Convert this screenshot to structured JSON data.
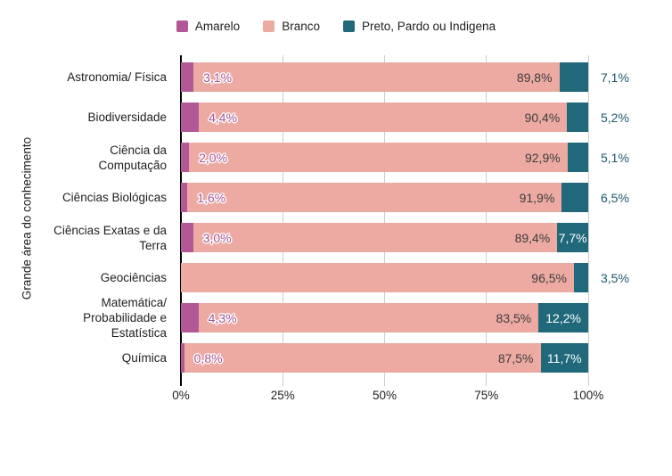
{
  "chart_data": {
    "type": "bar",
    "orientation": "horizontal",
    "stacked": true,
    "title": "",
    "xlabel": "",
    "ylabel": "Grande área do conhecimento",
    "xlim": [
      0,
      100
    ],
    "x_ticks": [
      "0%",
      "25%",
      "50%",
      "75%",
      "100%"
    ],
    "grid": true,
    "legend_position": "top",
    "legend": {
      "items": [
        {
          "label": "Amarelo",
          "color": "#b25896"
        },
        {
          "label": "Branco",
          "color": "#ecaaa2"
        },
        {
          "label": "Preto, Pardo ou Indigena",
          "color": "#20697b"
        }
      ]
    },
    "annotation_colors": {
      "amarelo_text": "#a6538f",
      "branco_text": "#3d3d3d",
      "ppi_inside_text": "#ffffff",
      "ppi_outside_text": "#1a5b6e"
    },
    "rows": [
      {
        "category": "Astronomia/ Física",
        "amarelo": 3.1,
        "branco": 89.8,
        "ppi": 7.1,
        "amarelo_label": "3,1%",
        "branco_label": "89,8%",
        "ppi_label": "7,1%",
        "ppi_label_position": "outside"
      },
      {
        "category": "Biodiversidade",
        "amarelo": 4.4,
        "branco": 90.4,
        "ppi": 5.2,
        "amarelo_label": "4,4%",
        "branco_label": "90,4%",
        "ppi_label": "5,2%",
        "ppi_label_position": "outside"
      },
      {
        "category": "Ciência da\nComputação",
        "amarelo": 2.0,
        "branco": 92.9,
        "ppi": 5.1,
        "amarelo_label": "2,0%",
        "branco_label": "92,9%",
        "ppi_label": "5,1%",
        "ppi_label_position": "outside"
      },
      {
        "category": "Ciências Biológicas",
        "amarelo": 1.6,
        "branco": 91.9,
        "ppi": 6.5,
        "amarelo_label": "1,6%",
        "branco_label": "91,9%",
        "ppi_label": "6,5%",
        "ppi_label_position": "outside"
      },
      {
        "category": "Ciências Exatas e da\nTerra",
        "amarelo": 3.0,
        "branco": 89.4,
        "ppi": 7.7,
        "amarelo_label": "3,0%",
        "branco_label": "89,4%",
        "ppi_label": "7,7%",
        "ppi_label_position": "inside"
      },
      {
        "category": "Geociências",
        "amarelo": 0,
        "branco": 96.5,
        "ppi": 3.5,
        "amarelo_label": "",
        "branco_label": "96,5%",
        "ppi_label": "3,5%",
        "ppi_label_position": "outside"
      },
      {
        "category": "Matemática/\nProbabilidade e\nEstatística",
        "amarelo": 4.3,
        "branco": 83.5,
        "ppi": 12.2,
        "amarelo_label": "4,3%",
        "branco_label": "83,5%",
        "ppi_label": "12,2%",
        "ppi_label_position": "inside"
      },
      {
        "category": "Química",
        "amarelo": 0.8,
        "branco": 87.5,
        "ppi": 11.7,
        "amarelo_label": "0,8%",
        "branco_label": "87,5%",
        "ppi_label": "11,7%",
        "ppi_label_position": "inside"
      }
    ]
  }
}
